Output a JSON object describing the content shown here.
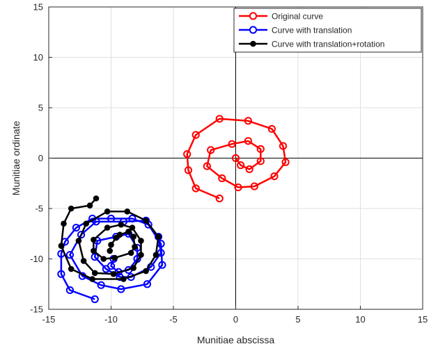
{
  "chart_data": {
    "type": "line",
    "title": "",
    "xlabel": "Munitiae abscissa",
    "ylabel": "Munitiae ordinate",
    "xlim": [
      -15,
      15
    ],
    "ylim": [
      -15,
      15
    ],
    "xticks": [
      -15,
      -10,
      -5,
      0,
      5,
      10,
      15
    ],
    "yticks": [
      -15,
      -10,
      -5,
      0,
      5,
      10,
      15
    ],
    "grid": true,
    "axes_lines_through_origin": true,
    "legend_position": "top-right",
    "series": [
      {
        "name": "Original curve",
        "color": "#ff0000",
        "marker": "circle-open",
        "points": [
          [
            0,
            0
          ],
          [
            0.4,
            -0.7
          ],
          [
            1.1,
            -1.1
          ],
          [
            2.0,
            -0.3
          ],
          [
            2.0,
            0.9
          ],
          [
            1.0,
            1.7
          ],
          [
            -0.3,
            1.4
          ],
          [
            -2.0,
            0.8
          ],
          [
            -2.3,
            -0.8
          ],
          [
            -1.1,
            -2.0
          ],
          [
            0.2,
            -2.9
          ],
          [
            1.5,
            -2.8
          ],
          [
            3.1,
            -1.8
          ],
          [
            4.0,
            -0.4
          ],
          [
            3.8,
            1.2
          ],
          [
            2.9,
            2.9
          ],
          [
            1.0,
            3.7
          ],
          [
            -1.3,
            3.9
          ],
          [
            -3.2,
            2.3
          ],
          [
            -3.9,
            0.4
          ],
          [
            -3.8,
            -1.2
          ],
          [
            -3.2,
            -3.0
          ],
          [
            -1.3,
            -4.0
          ]
        ]
      },
      {
        "name": "Curve with translation",
        "color": "#0000ff",
        "marker": "circle-open",
        "points": [
          [
            -9.8,
            -10.0
          ],
          [
            -10.0,
            -10.7
          ],
          [
            -9.4,
            -11.3
          ],
          [
            -8.6,
            -11.1
          ],
          [
            -7.9,
            -10.0
          ],
          [
            -7.9,
            -8.9
          ],
          [
            -8.6,
            -7.5
          ],
          [
            -9.6,
            -7.8
          ],
          [
            -11.1,
            -8.2
          ],
          [
            -11.3,
            -9.8
          ],
          [
            -10.4,
            -11.0
          ],
          [
            -9.3,
            -11.8
          ],
          [
            -8.4,
            -11.8
          ],
          [
            -6.8,
            -10.8
          ],
          [
            -6.0,
            -9.4
          ],
          [
            -6.2,
            -7.8
          ],
          [
            -7.2,
            -6.2
          ],
          [
            -9.0,
            -6.3
          ],
          [
            -11.2,
            -6.3
          ],
          [
            -12.4,
            -7.6
          ],
          [
            -13.3,
            -9.6
          ],
          [
            -12.3,
            -11.7
          ],
          [
            -10.8,
            -12.6
          ],
          [
            -9.2,
            -13.0
          ],
          [
            -7.1,
            -12.5
          ],
          [
            -5.9,
            -10.6
          ],
          [
            -6.0,
            -8.5
          ],
          [
            -7.0,
            -6.6
          ],
          [
            -8.3,
            -6.0
          ],
          [
            -10.0,
            -6.0
          ],
          [
            -11.5,
            -6.0
          ],
          [
            -12.8,
            -6.9
          ],
          [
            -13.7,
            -8.3
          ],
          [
            -14.0,
            -9.5
          ],
          [
            -14.0,
            -11.5
          ],
          [
            -13.3,
            -13.1
          ],
          [
            -11.3,
            -14.0
          ]
        ]
      },
      {
        "name": "Curve with translation+rotation",
        "color": "#000000",
        "marker": "circle-filled",
        "points": [
          [
            -10.1,
            -9.2
          ],
          [
            -10.0,
            -8.6
          ],
          [
            -9.6,
            -7.9
          ],
          [
            -9.3,
            -7.6
          ],
          [
            -8.6,
            -7.3
          ],
          [
            -8.2,
            -7.8
          ],
          [
            -8.1,
            -8.8
          ],
          [
            -8.4,
            -9.4
          ],
          [
            -9.7,
            -9.9
          ],
          [
            -10.6,
            -10.0
          ],
          [
            -11.4,
            -9.2
          ],
          [
            -11.4,
            -8.1
          ],
          [
            -10.3,
            -6.9
          ],
          [
            -9.2,
            -6.6
          ],
          [
            -8.3,
            -6.9
          ],
          [
            -7.6,
            -8.2
          ],
          [
            -7.6,
            -9.6
          ],
          [
            -8.2,
            -10.9
          ],
          [
            -9.8,
            -11.5
          ],
          [
            -11.3,
            -11.4
          ],
          [
            -12.2,
            -10.2
          ],
          [
            -12.6,
            -8.2
          ],
          [
            -12.0,
            -6.5
          ],
          [
            -10.3,
            -5.3
          ],
          [
            -8.7,
            -5.3
          ],
          [
            -7.2,
            -6.2
          ],
          [
            -6.2,
            -7.8
          ],
          [
            -6.4,
            -9.6
          ],
          [
            -7.2,
            -11.2
          ],
          [
            -9.0,
            -12.0
          ],
          [
            -11.5,
            -12.0
          ],
          [
            -13.2,
            -11.0
          ],
          [
            -14.0,
            -8.7
          ],
          [
            -13.8,
            -6.5
          ],
          [
            -13.2,
            -5.0
          ],
          [
            -11.7,
            -4.7
          ],
          [
            -11.2,
            -4.0
          ]
        ]
      }
    ]
  }
}
